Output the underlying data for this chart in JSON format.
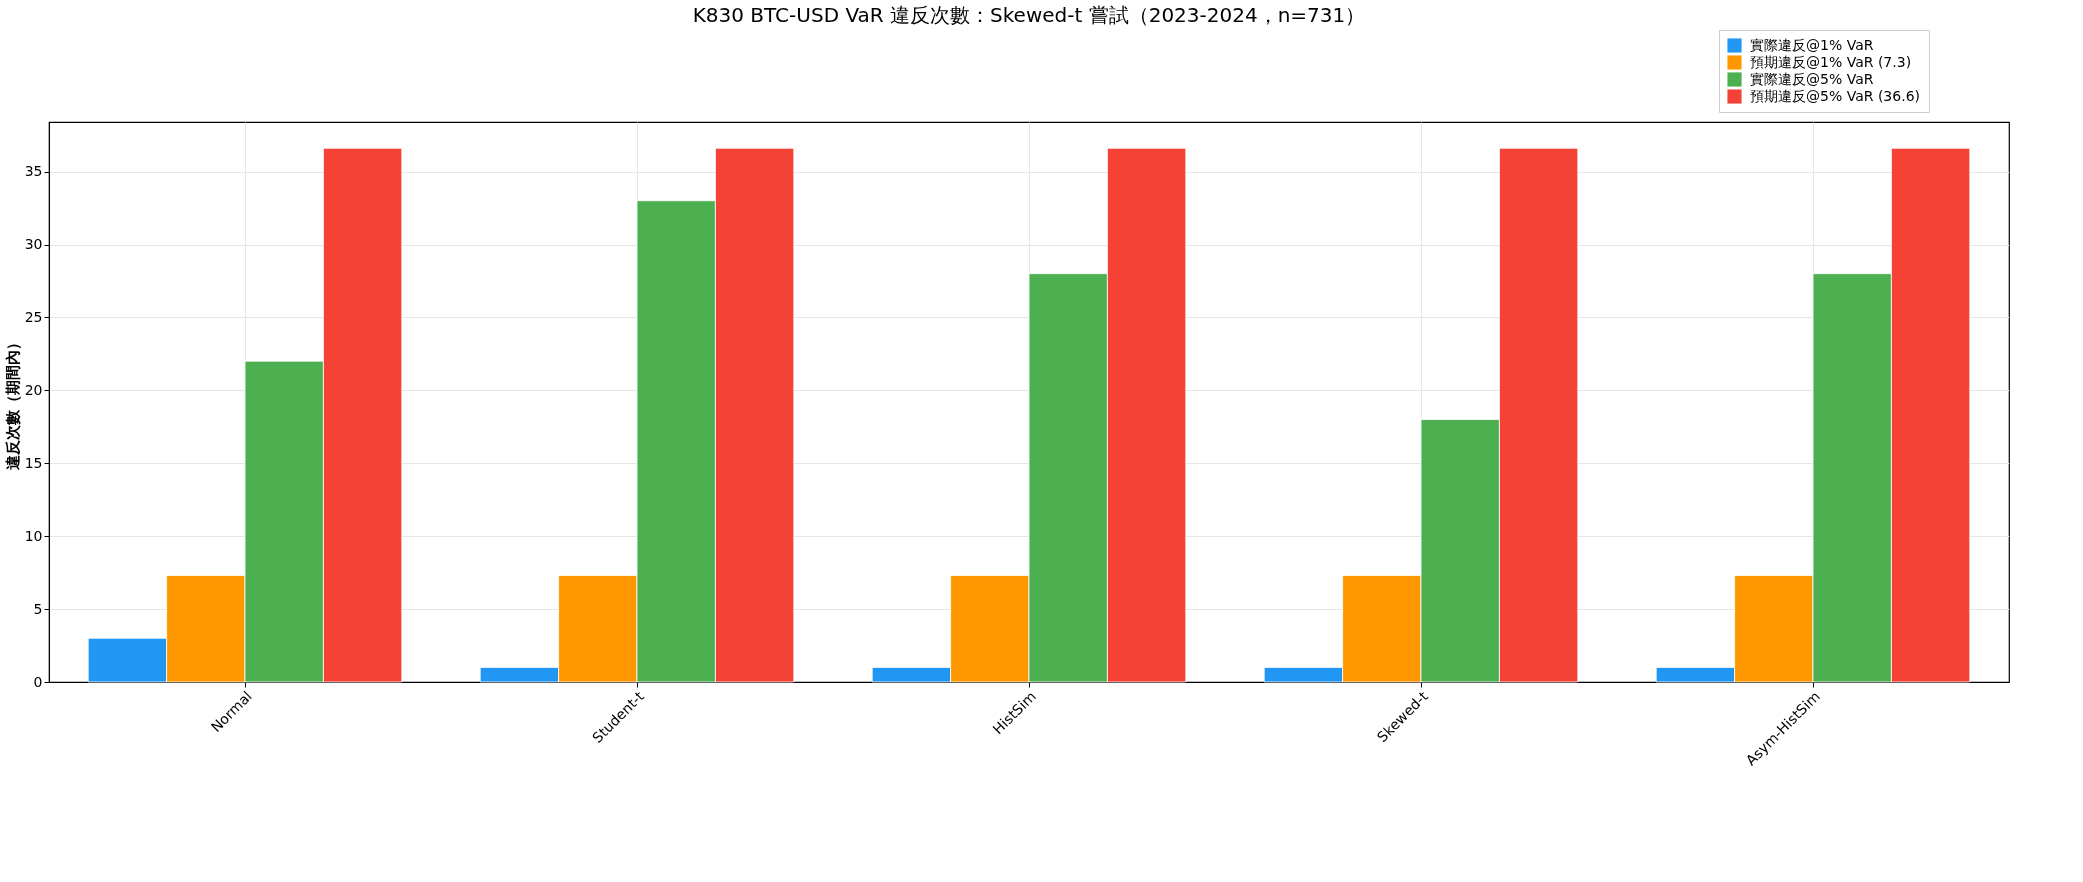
{
  "chart_data": {
    "type": "bar",
    "title": "K830 BTC-USD VaR 違反次數：Skewed-t 嘗試（2023-2024，n=731）",
    "ylabel": "違反次數（期間內）",
    "categories": [
      "Normal",
      "Student-t",
      "HistSim",
      "Skewed-t",
      "Asym-HistSim"
    ],
    "series": [
      {
        "name": "實際違反@1% VaR",
        "color": "#2196f3",
        "values": [
          3,
          1,
          1,
          1,
          1
        ]
      },
      {
        "name": "預期違反@1% VaR (7.3)",
        "color": "#ff9800",
        "values": [
          7.3,
          7.3,
          7.3,
          7.3,
          7.3
        ]
      },
      {
        "name": "實際違反@5% VaR",
        "color": "#4caf50",
        "values": [
          22,
          33,
          28,
          18,
          28
        ]
      },
      {
        "name": "預期違反@5% VaR (36.6)",
        "color": "#f44336",
        "values": [
          36.6,
          36.6,
          36.6,
          36.6,
          36.6
        ]
      }
    ],
    "ylim": [
      0,
      38.4
    ],
    "yticks": [
      0,
      5,
      10,
      15,
      20,
      25,
      30,
      35
    ],
    "grid": true,
    "legend": "top right"
  }
}
